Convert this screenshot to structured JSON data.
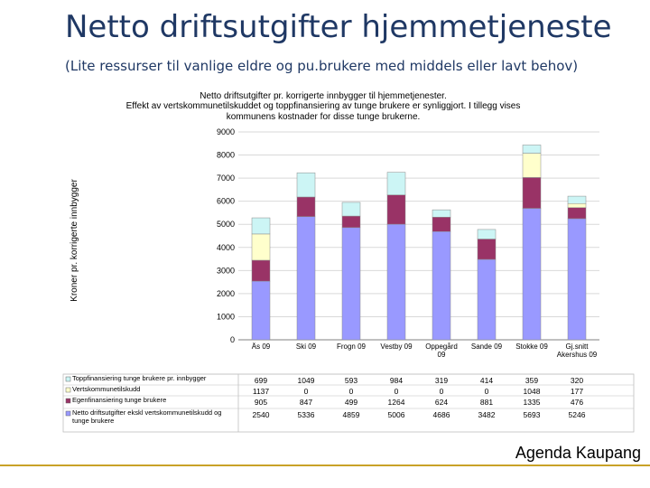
{
  "slide": {
    "title": "Netto driftsutgifter hjemmetjeneste",
    "subtitle": "(Lite ressurser til vanlige eldre og pu.brukere med middels eller lavt behov)",
    "footer": "Agenda Kaupang"
  },
  "colors": {
    "topp": "#ccf5f5",
    "verts": "#ffffcc",
    "egen": "#993366",
    "netto": "#9999ff",
    "title_text": "#1f3864",
    "accent_line": "#c9a227"
  },
  "chart_data": {
    "type": "bar",
    "stacked": true,
    "title": "Netto driftsutgifter pr. korrigerte innbygger til hjemmetjenester.",
    "subtitle": "Effekt av vertskommunetilskuddet og toppfinansiering av tunge brukere er synliggjort. I tillegg vises kommunens kostnader for disse tunge brukerne.",
    "ylabel": "Kroner pr. korrigerte innbygger",
    "ylim": [
      0,
      9000
    ],
    "yticks": [
      "0",
      "1000",
      "2000",
      "3000",
      "4000",
      "5000",
      "6000",
      "7000",
      "8000",
      "9000"
    ],
    "categories": [
      "Ås 09",
      "Ski 09",
      "Frogn 09",
      "Vestby 09",
      "Oppegård 09",
      "Sande 09",
      "Stokke 09",
      "Gj.snitt Akershus 09"
    ],
    "series": [
      {
        "name": "Netto driftsutgifter ekskl vertskommunetilskudd og tunge brukere",
        "key": "netto",
        "values": [
          2540,
          5336,
          4859,
          5006,
          4686,
          3482,
          5693,
          5246
        ]
      },
      {
        "name": "Egenfinansiering tunge brukere",
        "key": "egen",
        "values": [
          905,
          847,
          499,
          1264,
          624,
          881,
          1335,
          476
        ]
      },
      {
        "name": "Vertskommunetilskudd",
        "key": "verts",
        "values": [
          1137,
          0,
          0,
          0,
          0,
          0,
          1048,
          177
        ]
      },
      {
        "name": "Toppfinansiering tunge brukere pr. innbygger",
        "key": "topp",
        "values": [
          699,
          1049,
          593,
          984,
          319,
          414,
          359,
          320
        ]
      }
    ],
    "table_rows": [
      {
        "key": "topp",
        "label": "Toppfinansiering tunge brukere pr. innbygger",
        "cells": [
          "699",
          "1049",
          "593",
          "984",
          "319",
          "414",
          "359",
          "320"
        ]
      },
      {
        "key": "verts",
        "label": "Vertskommunetilskudd",
        "cells": [
          "1137",
          "0",
          "0",
          "0",
          "0",
          "0",
          "1048",
          "177"
        ]
      },
      {
        "key": "egen",
        "label": "Egenfinansiering tunge brukere",
        "cells": [
          "905",
          "847",
          "499",
          "1264",
          "624",
          "881",
          "1335",
          "476"
        ]
      },
      {
        "key": "netto",
        "label": "Netto driftsutgifter ekskl vertskommunetilskudd og tunge brukere",
        "cells": [
          "2540",
          "5336",
          "4859",
          "5006",
          "4686",
          "3482",
          "5693",
          "5246"
        ]
      }
    ]
  }
}
